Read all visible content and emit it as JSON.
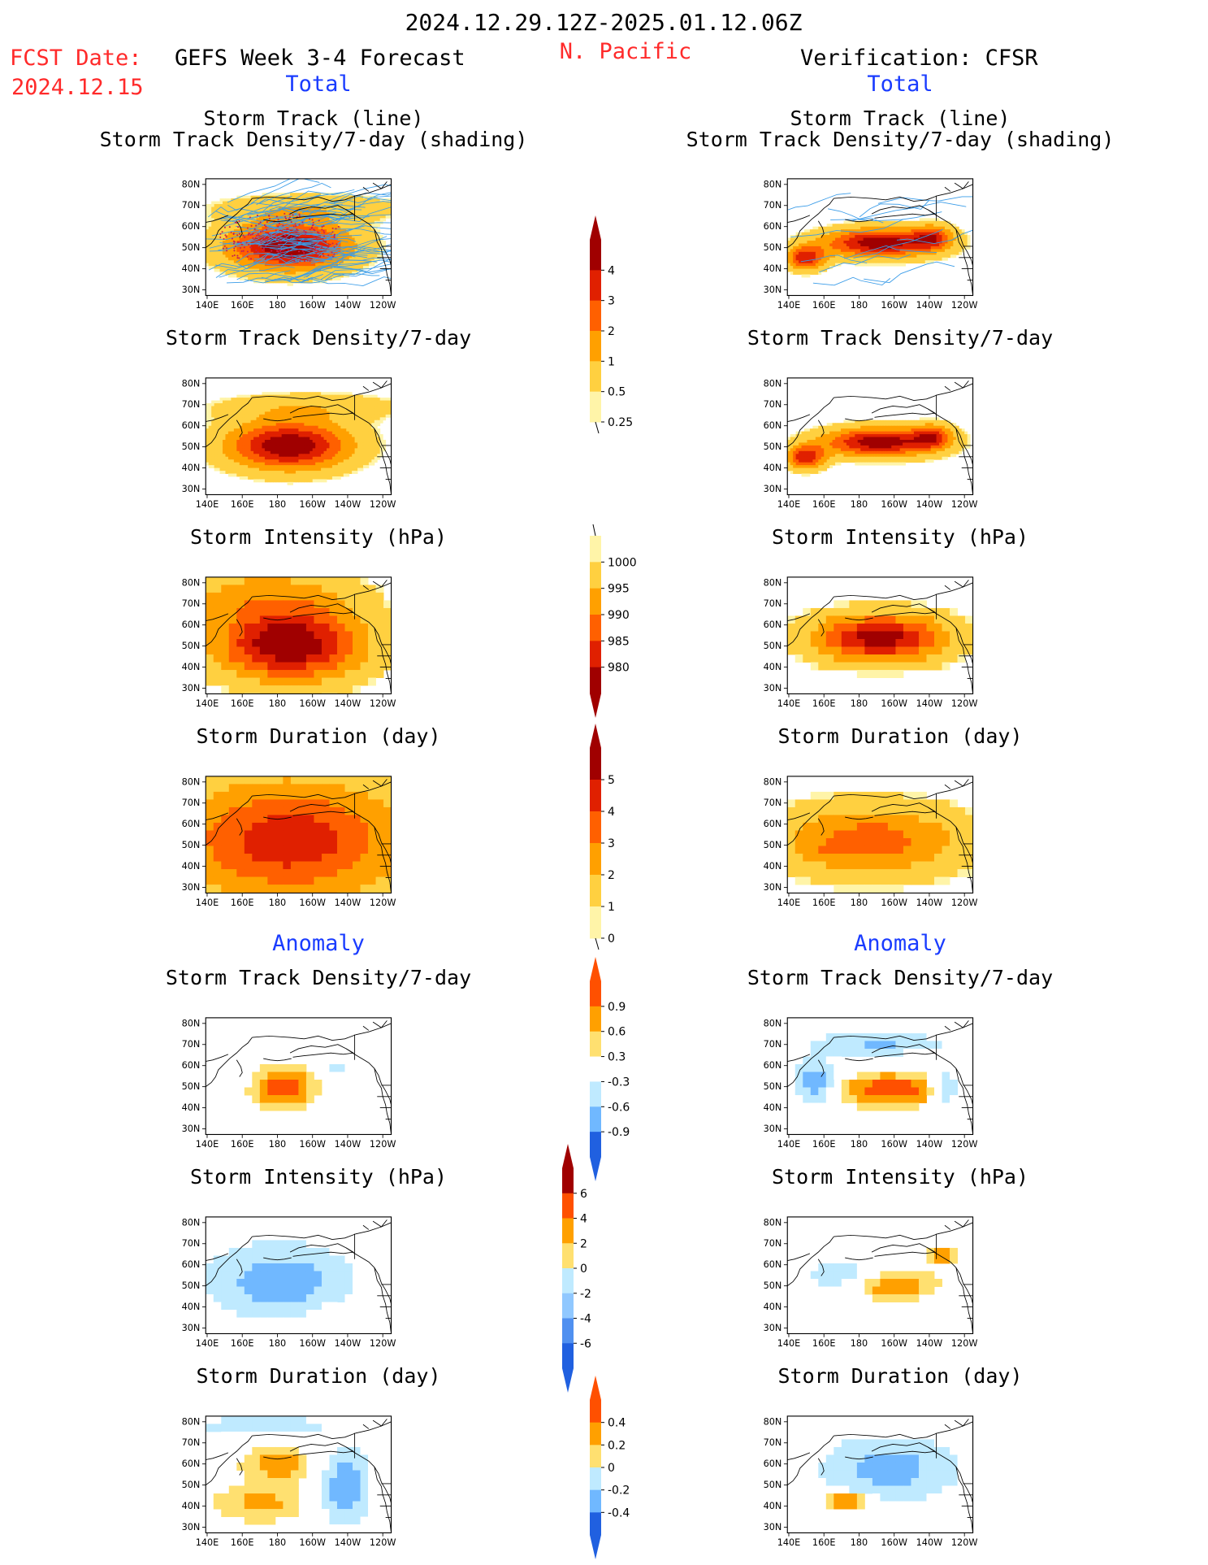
{
  "header": {
    "period": "2024.12.29.12Z-2025.01.12.06Z",
    "fcst_label": "FCST Date:",
    "fcst_date": "2024.12.15",
    "left_title": "GEFS Week 3-4 Forecast",
    "region": "N. Pacific",
    "right_title": "Verification: CFSR"
  },
  "sections": {
    "total_label": "Total",
    "anomaly_label": "Anomaly"
  },
  "axes": {
    "lon_labels": [
      "140E",
      "160E",
      "180",
      "160W",
      "140W",
      "120W"
    ],
    "lat_labels": [
      "80N",
      "70N",
      "60N",
      "50N",
      "40N",
      "30N"
    ]
  },
  "panel_titles": {
    "track_a": "Storm Track (line)",
    "track_b": "Storm Track Density/7-day (shading)",
    "density": "Storm Track Density/7-day",
    "intensity": "Storm Intensity (hPa)",
    "duration": "Storm Duration (day)"
  },
  "colorbars": {
    "density": {
      "labels": [
        "4",
        "3",
        "2",
        "1",
        "0.5",
        "0.25"
      ],
      "colors": [
        "#a00000",
        "#e02000",
        "#ff6000",
        "#ffa000",
        "#ffd040",
        "#fff4a8"
      ]
    },
    "intensity": {
      "labels": [
        "1000",
        "995",
        "990",
        "985",
        "980"
      ],
      "colors": [
        "#fff4a8",
        "#ffd040",
        "#ffa000",
        "#ff6000",
        "#e02000",
        "#a00000"
      ]
    },
    "duration": {
      "labels": [
        "5",
        "4",
        "3",
        "2",
        "1",
        "0"
      ],
      "colors": [
        "#a00000",
        "#e02000",
        "#ff6000",
        "#ffa000",
        "#ffd040",
        "#fff4a8"
      ]
    },
    "anom_density": {
      "labels": [
        "0.9",
        "0.6",
        "0.3",
        "-0.3",
        "-0.6",
        "-0.9"
      ],
      "colors": [
        "#ff5000",
        "#ffa000",
        "#ffe070",
        "#ffffff",
        "#bfeaff",
        "#70b8ff",
        "#2060e0"
      ]
    },
    "anom_intensity": {
      "labels": [
        "6",
        "4",
        "2",
        "0",
        "-2",
        "-4",
        "-6"
      ],
      "colors": [
        "#a00000",
        "#ff5000",
        "#ffa000",
        "#ffe070",
        "#bfeaff",
        "#90c8ff",
        "#5090f0",
        "#2060e0"
      ]
    },
    "anom_duration": {
      "labels": [
        "0.4",
        "0.2",
        "0",
        "-0.2",
        "-0.4"
      ],
      "colors": [
        "#ff5000",
        "#ffa000",
        "#ffe070",
        "#bfeaff",
        "#70b8ff",
        "#2060e0"
      ]
    }
  },
  "colors": {
    "title_red": "#ff2a2a",
    "title_blue": "#1a3cff",
    "track_line": "#3a9ce8",
    "track_dots": "#c82050"
  }
}
